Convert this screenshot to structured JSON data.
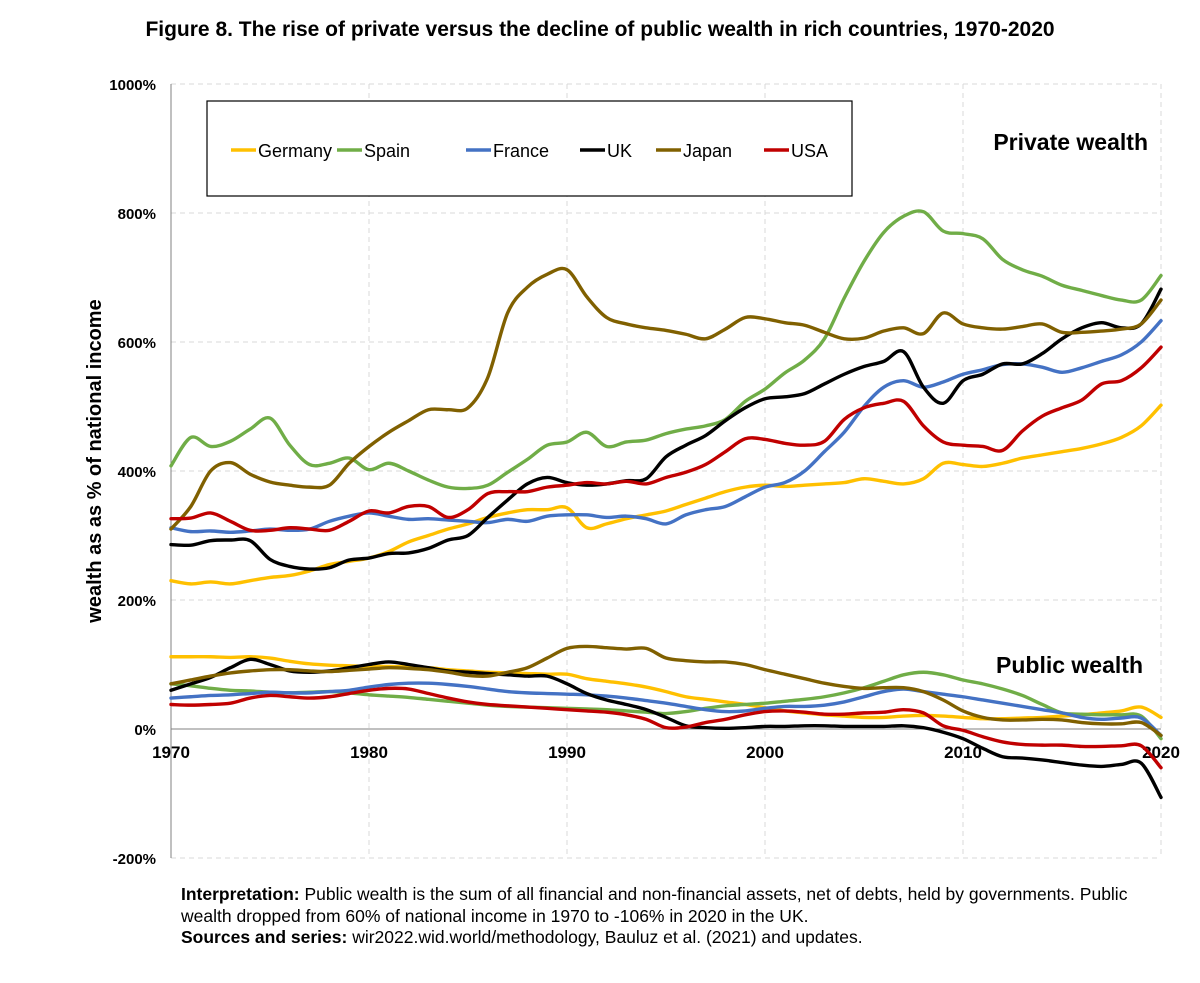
{
  "chart_data": {
    "type": "line",
    "title": "Figure 8. The rise of private versus the decline of public wealth in rich countries, 1970-2020",
    "ylabel": "wealth as as % of national income",
    "xlabel": "",
    "xlim": [
      1970,
      2020
    ],
    "ylim": [
      -200,
      1000
    ],
    "x_ticks": [
      "1970",
      "1980",
      "1990",
      "2000",
      "2010",
      "2020"
    ],
    "y_ticks": [
      "1000%",
      "800%",
      "600%",
      "400%",
      "200%",
      "0%",
      "-200%"
    ],
    "y_tick_values": [
      1000,
      800,
      600,
      400,
      200,
      0,
      -200
    ],
    "grid": true,
    "legend_placement": "top-left",
    "annotations": {
      "private": "Private wealth",
      "public": "Public wealth"
    },
    "x": [
      1970,
      1971,
      1972,
      1973,
      1974,
      1975,
      1976,
      1977,
      1978,
      1979,
      1980,
      1981,
      1982,
      1983,
      1984,
      1985,
      1986,
      1987,
      1988,
      1989,
      1990,
      1991,
      1992,
      1993,
      1994,
      1995,
      1996,
      1997,
      1998,
      1999,
      2000,
      2001,
      2002,
      2003,
      2004,
      2005,
      2006,
      2007,
      2008,
      2009,
      2010,
      2011,
      2012,
      2013,
      2014,
      2015,
      2016,
      2017,
      2018,
      2019,
      2020
    ],
    "series": [
      {
        "name": "Germany",
        "color": "#FFC000",
        "private": [
          230,
          225,
          228,
          225,
          230,
          235,
          238,
          245,
          255,
          260,
          265,
          275,
          290,
          300,
          310,
          318,
          328,
          335,
          340,
          340,
          343,
          312,
          318,
          326,
          332,
          338,
          348,
          358,
          368,
          375,
          378,
          376,
          378,
          380,
          382,
          388,
          384,
          380,
          388,
          412,
          410,
          407,
          412,
          420,
          425,
          430,
          435,
          442,
          452,
          470,
          502
        ],
        "public": [
          112,
          112,
          112,
          111,
          112,
          110,
          105,
          101,
          99,
          98,
          97,
          97,
          96,
          95,
          92,
          90,
          88,
          87,
          86,
          85,
          85,
          78,
          74,
          70,
          65,
          58,
          50,
          46,
          42,
          38,
          33,
          28,
          25,
          22,
          20,
          18,
          18,
          20,
          21,
          20,
          18,
          16,
          16,
          17,
          18,
          20,
          22,
          25,
          28,
          34,
          18
        ]
      },
      {
        "name": "Spain",
        "color": "#70AD47",
        "private": [
          408,
          452,
          438,
          446,
          465,
          482,
          440,
          410,
          412,
          420,
          402,
          412,
          400,
          386,
          375,
          373,
          378,
          398,
          418,
          440,
          445,
          460,
          438,
          445,
          448,
          458,
          465,
          470,
          480,
          508,
          527,
          552,
          572,
          605,
          668,
          725,
          770,
          795,
          802,
          772,
          768,
          760,
          728,
          712,
          702,
          688,
          680,
          672,
          665,
          665,
          703
        ],
        "public": [
          70,
          67,
          63,
          60,
          59,
          57,
          56,
          57,
          58,
          56,
          53,
          51,
          49,
          46,
          43,
          40,
          37,
          35,
          34,
          33,
          32,
          31,
          30,
          28,
          26,
          24,
          27,
          32,
          36,
          38,
          40,
          43,
          46,
          50,
          56,
          64,
          74,
          84,
          88,
          84,
          76,
          70,
          62,
          52,
          38,
          25,
          23,
          22,
          22,
          20,
          -15
        ]
      },
      {
        "name": "France",
        "color": "#4472C4",
        "private": [
          312,
          306,
          307,
          305,
          307,
          310,
          308,
          310,
          322,
          330,
          335,
          330,
          325,
          326,
          324,
          322,
          320,
          325,
          322,
          330,
          332,
          332,
          328,
          330,
          326,
          318,
          332,
          340,
          345,
          360,
          375,
          382,
          400,
          430,
          460,
          500,
          530,
          540,
          530,
          538,
          550,
          557,
          565,
          566,
          561,
          553,
          560,
          570,
          580,
          600,
          633
        ],
        "public": [
          48,
          50,
          52,
          53,
          55,
          57,
          56,
          56,
          58,
          60,
          65,
          69,
          71,
          71,
          69,
          66,
          62,
          58,
          56,
          55,
          54,
          53,
          51,
          48,
          44,
          40,
          35,
          30,
          27,
          28,
          32,
          35,
          35,
          37,
          42,
          50,
          58,
          62,
          58,
          54,
          50,
          45,
          40,
          35,
          30,
          25,
          18,
          15,
          17,
          17,
          -10
        ]
      },
      {
        "name": "UK",
        "color": "#000000",
        "private": [
          286,
          285,
          292,
          293,
          292,
          263,
          252,
          248,
          250,
          262,
          265,
          272,
          273,
          280,
          293,
          300,
          328,
          355,
          380,
          390,
          382,
          378,
          380,
          385,
          388,
          422,
          440,
          455,
          478,
          498,
          512,
          515,
          520,
          535,
          550,
          562,
          570,
          585,
          530,
          505,
          540,
          550,
          566,
          566,
          582,
          605,
          622,
          630,
          622,
          628,
          682
        ],
        "public": [
          60,
          70,
          80,
          95,
          108,
          100,
          90,
          88,
          90,
          95,
          100,
          104,
          100,
          95,
          90,
          88,
          86,
          84,
          82,
          82,
          70,
          55,
          45,
          38,
          30,
          18,
          5,
          2,
          1,
          2,
          4,
          4,
          5,
          5,
          4,
          4,
          4,
          5,
          2,
          -5,
          -15,
          -30,
          -43,
          -45,
          -48,
          -52,
          -56,
          -58,
          -55,
          -53,
          -106
        ]
      },
      {
        "name": "Japan",
        "color": "#806000",
        "private": [
          310,
          345,
          400,
          413,
          395,
          383,
          378,
          375,
          378,
          412,
          438,
          460,
          478,
          495,
          495,
          498,
          545,
          645,
          685,
          705,
          712,
          670,
          638,
          628,
          622,
          618,
          612,
          605,
          620,
          638,
          636,
          630,
          626,
          615,
          605,
          606,
          617,
          622,
          613,
          645,
          628,
          622,
          620,
          624,
          628,
          615,
          615,
          617,
          620,
          628,
          665
        ],
        "public": [
          70,
          76,
          82,
          87,
          90,
          92,
          92,
          90,
          89,
          91,
          93,
          95,
          94,
          92,
          88,
          83,
          82,
          88,
          95,
          110,
          125,
          128,
          126,
          124,
          125,
          110,
          106,
          104,
          104,
          100,
          92,
          85,
          78,
          71,
          66,
          63,
          64,
          64,
          58,
          45,
          28,
          18,
          14,
          14,
          15,
          14,
          10,
          8,
          8,
          10,
          -10
        ]
      },
      {
        "name": "USA",
        "color": "#C00000",
        "private": [
          326,
          327,
          335,
          322,
          308,
          308,
          312,
          310,
          308,
          322,
          338,
          335,
          345,
          345,
          328,
          340,
          365,
          368,
          368,
          375,
          378,
          382,
          380,
          384,
          380,
          390,
          398,
          410,
          430,
          450,
          449,
          443,
          440,
          446,
          480,
          498,
          505,
          508,
          470,
          445,
          440,
          438,
          432,
          462,
          485,
          498,
          510,
          535,
          540,
          560,
          592
        ],
        "public": [
          38,
          37,
          38,
          40,
          48,
          52,
          50,
          48,
          50,
          55,
          60,
          63,
          62,
          55,
          48,
          42,
          38,
          36,
          34,
          32,
          30,
          28,
          26,
          22,
          15,
          2,
          3,
          10,
          15,
          22,
          27,
          28,
          26,
          23,
          23,
          25,
          26,
          30,
          25,
          5,
          -2,
          -12,
          -20,
          -24,
          -25,
          -25,
          -27,
          -27,
          -26,
          -26,
          -60
        ]
      }
    ]
  },
  "notes": {
    "interpretation_label": "Interpretation:",
    "interpretation_text": " Public wealth is the sum of all financial and non-financial assets, net of debts, held by governments. Public wealth dropped from 60% of national income in 1970 to -106% in 2020 in the UK.",
    "sources_label": "Sources and series:",
    "sources_text": " wir2022.wid.world/methodology, Bauluz et al. (2021) and updates."
  }
}
